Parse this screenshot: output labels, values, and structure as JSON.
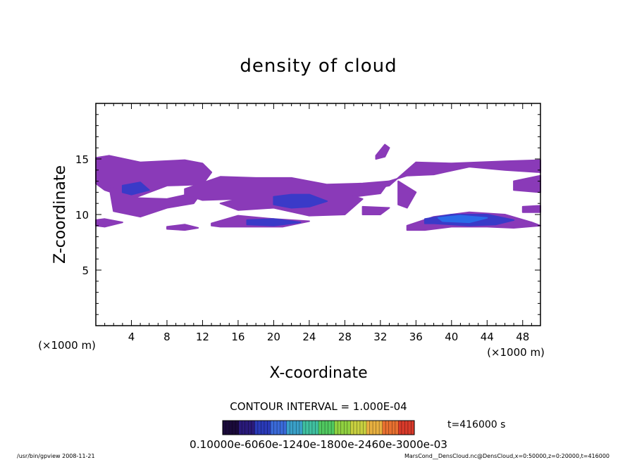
{
  "chart_data": {
    "type": "heatmap",
    "title": "density of cloud",
    "xlabel": "X-coordinate",
    "ylabel": "Z-coordinate",
    "x_unit": "(×1000 m)",
    "y_unit": "(×1000 m)",
    "xlim": [
      0,
      50
    ],
    "ylim": [
      0,
      20
    ],
    "x_ticks": [
      4,
      8,
      12,
      16,
      20,
      24,
      28,
      32,
      36,
      40,
      44,
      48
    ],
    "y_ticks": [
      5,
      10,
      15
    ],
    "contour_interval": "CONTOUR INTERVAL = 1.000E-04",
    "time_label": "t=416000 s",
    "colorbar_labels": "0.10000e-6060e-1240e-1800e-2460e-3000e-03",
    "colorbar_colors": [
      "#1a0a3a",
      "#2a1a7a",
      "#2a3ab8",
      "#3a6ad8",
      "#3aa0c8",
      "#40c0a0",
      "#50c860",
      "#90d040",
      "#c8d040",
      "#e8b040",
      "#e87030",
      "#d83a2a"
    ],
    "cloud_fill": "#8a3ab8",
    "dense_fill": "#3a3ac8",
    "core_fill": "#2a6ae8",
    "regions": [
      {
        "level": "low",
        "x": [
          0,
          1.5,
          5,
          10,
          12,
          13,
          12,
          8,
          4,
          1,
          0
        ],
        "z": [
          15.1,
          15.3,
          14.7,
          14.9,
          14.6,
          13.8,
          12.7,
          12.6,
          11.4,
          12.2,
          12.8
        ]
      },
      {
        "level": "low",
        "x": [
          1.5,
          4,
          8,
          12,
          11,
          8,
          5,
          2
        ],
        "z": [
          12.6,
          11.5,
          11.4,
          12.1,
          11.0,
          10.6,
          9.8,
          10.3
        ]
      },
      {
        "level": "low",
        "x": [
          10,
          14,
          18,
          22,
          26,
          30,
          33,
          32,
          28,
          24,
          20,
          16,
          12,
          10
        ],
        "z": [
          12.3,
          13.4,
          13.3,
          13.3,
          12.7,
          12.8,
          13.0,
          11.9,
          11.5,
          10.4,
          11.1,
          11.4,
          11.3,
          11.8
        ]
      },
      {
        "level": "low",
        "x": [
          16,
          20,
          24,
          28,
          30,
          28,
          24,
          20,
          16,
          14
        ],
        "z": [
          11.4,
          11.4,
          11.8,
          11.9,
          11.4,
          10.0,
          9.9,
          10.6,
          10.4,
          11.0
        ]
      },
      {
        "level": "low",
        "x": [
          13,
          16,
          20,
          24,
          21,
          17,
          14,
          13
        ],
        "z": [
          9.2,
          9.9,
          9.6,
          9.4,
          8.9,
          8.9,
          8.9,
          9.0
        ]
      },
      {
        "level": "low",
        "x": [
          0,
          1,
          3,
          1,
          0
        ],
        "z": [
          9.5,
          9.6,
          9.3,
          8.9,
          9.0
        ]
      },
      {
        "level": "low",
        "x": [
          8,
          10,
          11.5,
          10,
          8
        ],
        "z": [
          8.9,
          9.1,
          8.8,
          8.6,
          8.7
        ]
      },
      {
        "level": "low",
        "x": [
          31.5,
          32.5,
          33,
          32.5,
          31.5
        ],
        "z": [
          15.3,
          16.3,
          16.0,
          15.2,
          15.0
        ]
      },
      {
        "level": "low",
        "x": [
          29,
          33,
          36,
          40,
          46,
          50,
          50,
          46,
          42,
          38,
          35,
          33,
          30
        ],
        "z": [
          12.0,
          12.6,
          14.7,
          14.6,
          14.8,
          14.9,
          13.8,
          14.0,
          14.3,
          13.6,
          13.5,
          13.0,
          12.2
        ]
      },
      {
        "level": "low",
        "x": [
          34,
          36,
          35,
          34
        ],
        "z": [
          13.0,
          12.0,
          10.6,
          10.9
        ]
      },
      {
        "level": "low",
        "x": [
          30,
          33,
          32,
          30
        ],
        "z": [
          10.7,
          10.6,
          10.0,
          10.0
        ]
      },
      {
        "level": "low",
        "x": [
          35,
          38,
          42,
          46,
          49,
          50,
          47,
          44,
          40,
          37,
          35
        ],
        "z": [
          9.0,
          9.8,
          10.2,
          10.0,
          9.3,
          9.0,
          8.8,
          8.9,
          8.9,
          8.6,
          8.6
        ]
      },
      {
        "level": "low",
        "x": [
          47,
          50,
          50,
          47
        ],
        "z": [
          13.0,
          13.5,
          12.0,
          12.2
        ]
      },
      {
        "level": "low",
        "x": [
          48,
          50,
          50,
          48
        ],
        "z": [
          10.7,
          10.8,
          10.2,
          10.2
        ]
      },
      {
        "level": "mid",
        "x": [
          20,
          22,
          24,
          26,
          24,
          22,
          20
        ],
        "z": [
          11.6,
          11.8,
          11.8,
          11.2,
          10.7,
          10.6,
          10.9
        ]
      },
      {
        "level": "mid",
        "x": [
          37,
          40,
          44,
          47,
          45,
          42,
          38,
          37
        ],
        "z": [
          9.6,
          10.0,
          10.0,
          9.5,
          9.1,
          9.0,
          9.2,
          9.2
        ]
      },
      {
        "level": "mid",
        "x": [
          17,
          20,
          23,
          20,
          17
        ],
        "z": [
          9.5,
          9.6,
          9.3,
          9.0,
          9.1
        ]
      },
      {
        "level": "mid",
        "x": [
          3,
          5,
          6,
          4,
          3
        ],
        "z": [
          12.6,
          12.9,
          12.2,
          11.8,
          12.0
        ]
      },
      {
        "level": "high",
        "x": [
          38.5,
          41,
          44,
          42,
          39
        ],
        "z": [
          9.7,
          9.9,
          9.7,
          9.3,
          9.4
        ]
      }
    ]
  },
  "footer": {
    "left": "/usr/bin/gpview   2008-11-21",
    "right": "MarsCond__DensCloud.nc@DensCloud,x=0:50000,z=0:20000,t=416000"
  }
}
